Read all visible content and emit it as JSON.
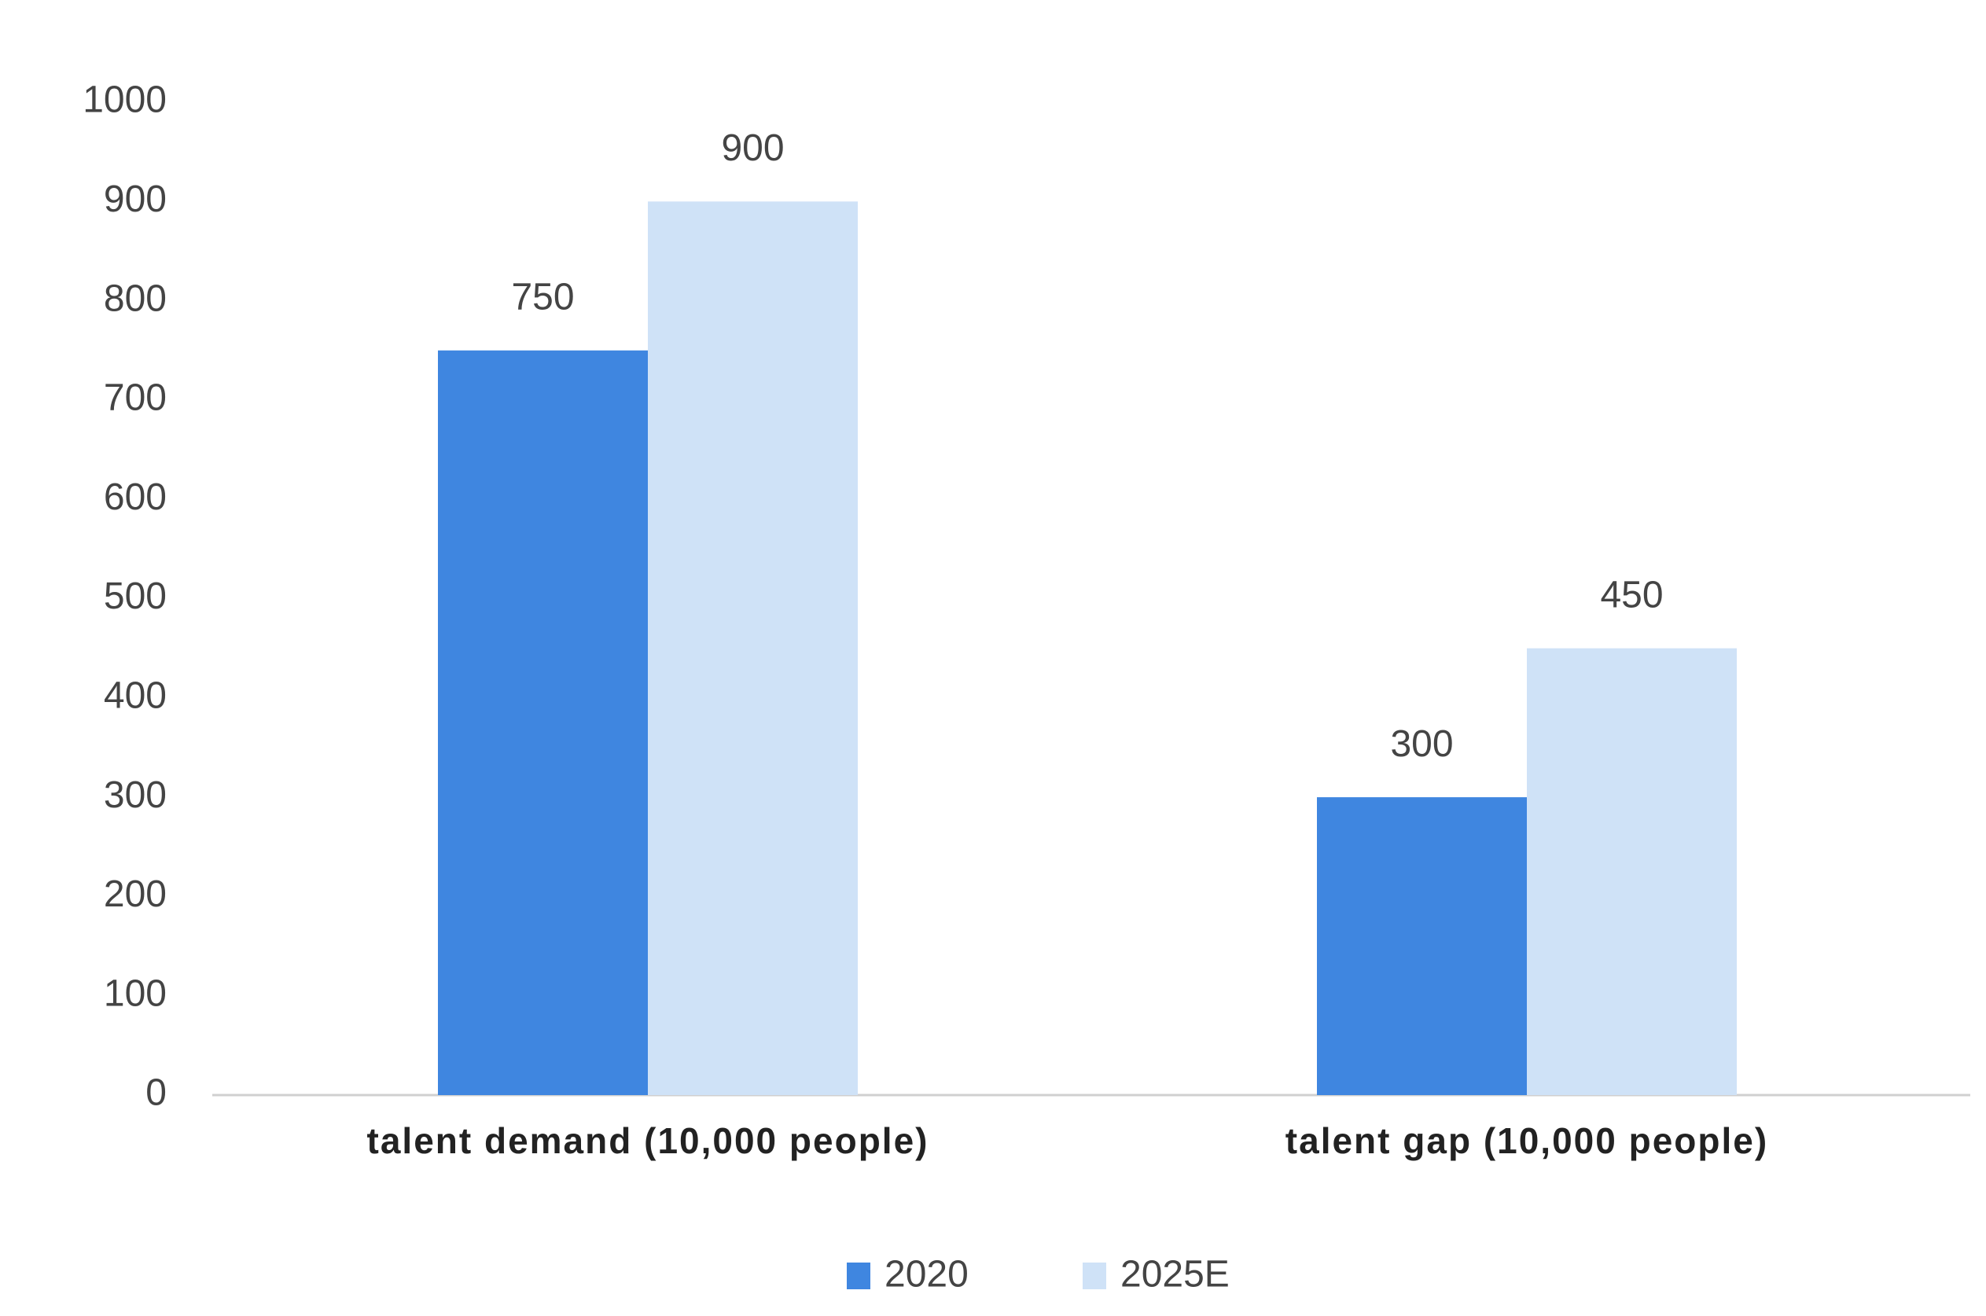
{
  "chart_data": {
    "type": "bar",
    "categories": [
      "talent demand (10,000 people)",
      "talent gap (10,000 people)"
    ],
    "series": [
      {
        "name": "2020",
        "color": "#3f86e0",
        "values": [
          750,
          300
        ]
      },
      {
        "name": "2025E",
        "color": "#cfe2f7",
        "values": [
          900,
          450
        ]
      }
    ],
    "ylim": [
      0,
      1000
    ],
    "yticks": [
      0,
      100,
      200,
      300,
      400,
      500,
      600,
      700,
      800,
      900,
      1000
    ],
    "grid": false,
    "legend": "bottom"
  }
}
